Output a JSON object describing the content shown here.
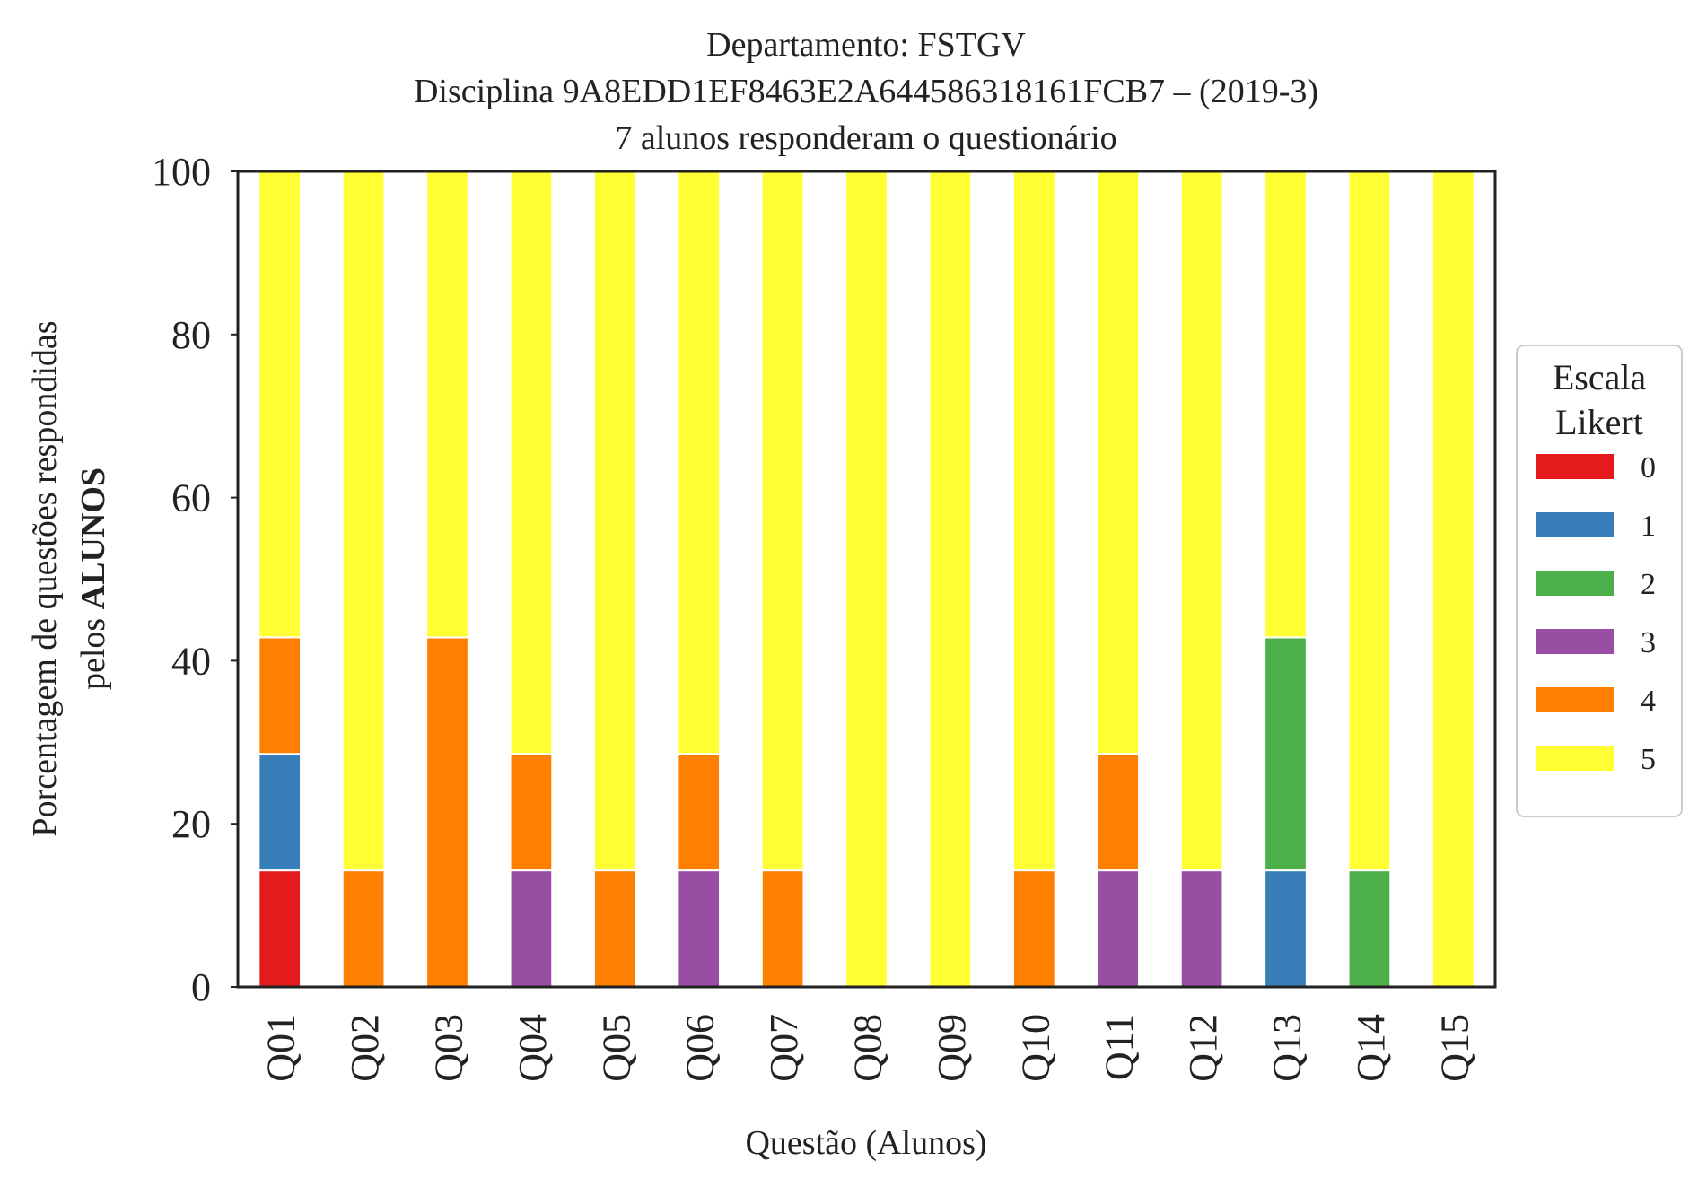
{
  "chart_data": {
    "type": "bar",
    "stacked": true,
    "title": [
      "Departamento: FSTGV",
      "Disciplina 9A8EDD1EF8463E2A644586318161FCB7 – (2019-3)",
      "7 alunos responderam o questionário"
    ],
    "xlabel": "Questão (Alunos)",
    "ylabel": {
      "line1": "Porcentagem de questões respondidas",
      "line2_prefix": "pelos ",
      "line2_bold": "ALUNOS"
    },
    "ylim": [
      0,
      100
    ],
    "yticks": [
      "0",
      "20",
      "40",
      "60",
      "80",
      "100"
    ],
    "grid": false,
    "legend": {
      "title": [
        "Escala",
        "Likert"
      ],
      "placement": "right"
    },
    "categories": [
      "Q01",
      "Q02",
      "Q03",
      "Q04",
      "Q05",
      "Q06",
      "Q07",
      "Q08",
      "Q09",
      "Q10",
      "Q11",
      "Q12",
      "Q13",
      "Q14",
      "Q15"
    ],
    "series": [
      {
        "name": "0",
        "color": "#e41a1c",
        "values": [
          14.29,
          0,
          0,
          0,
          0,
          0,
          0,
          0,
          0,
          0,
          0,
          0,
          0,
          0,
          0
        ]
      },
      {
        "name": "1",
        "color": "#377eb8",
        "values": [
          14.29,
          0,
          0,
          0,
          0,
          0,
          0,
          0,
          0,
          0,
          0,
          0,
          14.29,
          0,
          0
        ]
      },
      {
        "name": "2",
        "color": "#4daf4a",
        "values": [
          0,
          0,
          0,
          0,
          0,
          0,
          0,
          0,
          0,
          0,
          0,
          0,
          28.57,
          14.29,
          0
        ]
      },
      {
        "name": "3",
        "color": "#984ea3",
        "values": [
          0,
          0,
          0,
          14.29,
          0,
          14.29,
          0,
          0,
          0,
          0,
          14.29,
          14.29,
          0,
          0,
          0
        ]
      },
      {
        "name": "4",
        "color": "#ff7f00",
        "values": [
          14.29,
          14.29,
          42.86,
          14.29,
          14.29,
          14.29,
          14.29,
          0,
          0,
          14.29,
          14.29,
          0,
          0,
          0,
          0
        ]
      },
      {
        "name": "5",
        "color": "#ffff33",
        "values": [
          57.14,
          85.71,
          57.14,
          71.43,
          85.71,
          71.43,
          85.71,
          100,
          100,
          85.71,
          71.43,
          85.71,
          57.14,
          85.71,
          100
        ]
      }
    ]
  }
}
